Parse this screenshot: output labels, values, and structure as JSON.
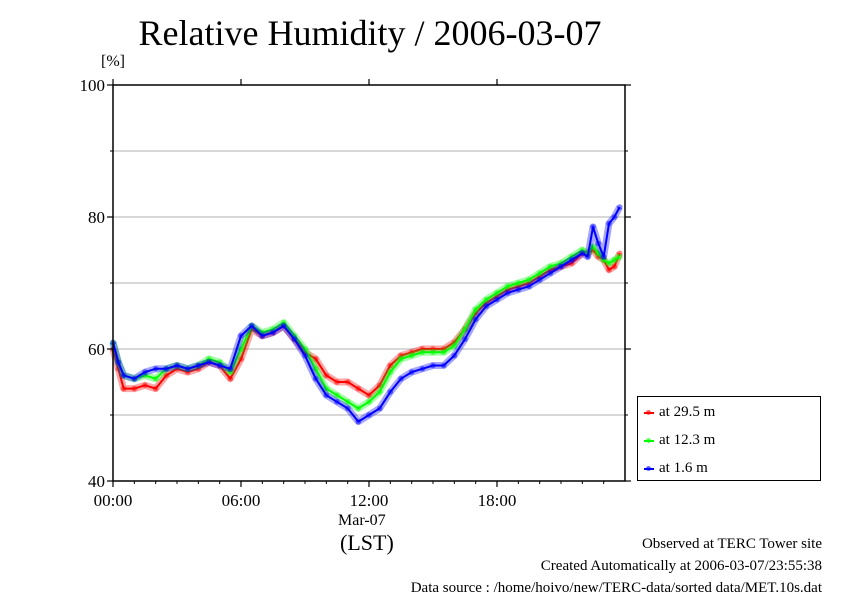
{
  "chart_data": {
    "type": "line",
    "title": "Relative Humidity / 2006-03-07",
    "ylabel": "[%]",
    "xlabel": "(LST)",
    "date_label": "Mar-07",
    "ylim": [
      40,
      100
    ],
    "xlim_hours": [
      0,
      24
    ],
    "y_ticks": [
      "40",
      "60",
      "80",
      "100"
    ],
    "x_ticks": [
      "00:00",
      "06:00",
      "12:00",
      "18:00"
    ],
    "grid": true,
    "legend_position": "bottom-right outside",
    "series": [
      {
        "name": "at 29.5 m",
        "color": "#ff0000",
        "x": [
          0.0,
          0.25,
          0.5,
          1.0,
          1.5,
          2.0,
          2.5,
          3.0,
          3.5,
          4.0,
          4.5,
          5.0,
          5.5,
          6.0,
          6.5,
          7.0,
          7.5,
          8.0,
          8.5,
          9.0,
          9.5,
          10.0,
          10.5,
          11.0,
          11.5,
          12.0,
          12.5,
          13.0,
          13.5,
          14.0,
          14.5,
          15.0,
          15.5,
          16.0,
          16.5,
          17.0,
          17.5,
          18.0,
          18.5,
          19.0,
          19.5,
          20.0,
          20.5,
          21.0,
          21.5,
          22.0,
          22.25,
          22.5,
          22.75,
          23.0,
          23.25,
          23.5,
          23.75
        ],
        "y": [
          60.0,
          57.0,
          54.0,
          54.0,
          54.5,
          54.0,
          56.0,
          57.0,
          56.5,
          57.0,
          58.0,
          57.5,
          55.5,
          58.5,
          63.0,
          62.0,
          62.5,
          63.5,
          61.5,
          59.5,
          58.5,
          56.0,
          55.0,
          55.0,
          54.0,
          53.0,
          54.5,
          57.5,
          59.0,
          59.5,
          60.0,
          60.0,
          60.0,
          61.0,
          63.0,
          65.5,
          67.0,
          68.0,
          69.0,
          69.5,
          70.0,
          71.0,
          72.0,
          72.5,
          73.0,
          74.5,
          74.5,
          75.0,
          74.0,
          73.5,
          72.0,
          72.5,
          74.5
        ]
      },
      {
        "name": "at 12.3 m",
        "color": "#00ff00",
        "x": [
          0.0,
          0.25,
          0.5,
          1.0,
          1.5,
          2.0,
          2.5,
          3.0,
          3.5,
          4.0,
          4.5,
          5.0,
          5.5,
          6.0,
          6.5,
          7.0,
          7.5,
          8.0,
          8.5,
          9.0,
          9.5,
          10.0,
          10.5,
          11.0,
          11.5,
          12.0,
          12.5,
          13.0,
          13.5,
          14.0,
          14.5,
          15.0,
          15.5,
          16.0,
          16.5,
          17.0,
          17.5,
          18.0,
          18.5,
          19.0,
          19.5,
          20.0,
          20.5,
          21.0,
          21.5,
          22.0,
          22.25,
          22.5,
          22.75,
          23.0,
          23.25,
          23.5,
          23.75
        ],
        "y": [
          61.0,
          58.0,
          56.0,
          55.5,
          56.0,
          55.5,
          57.0,
          57.5,
          57.0,
          57.5,
          58.5,
          58.0,
          56.5,
          60.0,
          63.5,
          62.5,
          63.0,
          64.0,
          62.0,
          60.0,
          57.0,
          54.0,
          53.0,
          52.0,
          51.0,
          52.0,
          53.5,
          56.5,
          58.5,
          59.0,
          59.5,
          59.5,
          59.5,
          60.5,
          63.0,
          66.0,
          67.5,
          68.5,
          69.5,
          70.0,
          70.5,
          71.5,
          72.5,
          73.0,
          74.0,
          75.0,
          74.5,
          75.5,
          74.5,
          73.5,
          73.0,
          73.5,
          74.0
        ]
      },
      {
        "name": "at 1.6 m",
        "color": "#0000ff",
        "x": [
          0.0,
          0.25,
          0.5,
          1.0,
          1.5,
          2.0,
          2.5,
          3.0,
          3.5,
          4.0,
          4.5,
          5.0,
          5.5,
          6.0,
          6.5,
          7.0,
          7.5,
          8.0,
          8.5,
          9.0,
          9.5,
          10.0,
          10.5,
          11.0,
          11.5,
          12.0,
          12.5,
          13.0,
          13.5,
          14.0,
          14.5,
          15.0,
          15.5,
          16.0,
          16.5,
          17.0,
          17.5,
          18.0,
          18.5,
          19.0,
          19.5,
          20.0,
          20.5,
          21.0,
          21.5,
          22.0,
          22.25,
          22.5,
          22.75,
          23.0,
          23.25,
          23.5,
          23.75
        ],
        "y": [
          61.0,
          58.0,
          56.0,
          55.5,
          56.5,
          57.0,
          57.0,
          57.5,
          57.0,
          57.5,
          58.0,
          57.5,
          57.0,
          62.0,
          63.5,
          62.0,
          62.5,
          63.5,
          61.5,
          59.0,
          55.5,
          53.0,
          52.0,
          51.0,
          49.0,
          50.0,
          51.0,
          53.5,
          55.5,
          56.5,
          57.0,
          57.5,
          57.5,
          59.0,
          61.5,
          64.5,
          66.5,
          67.5,
          68.5,
          69.0,
          69.5,
          70.5,
          71.5,
          72.5,
          73.5,
          74.5,
          74.0,
          78.5,
          76.0,
          74.0,
          79.0,
          80.0,
          81.5
        ]
      }
    ]
  },
  "footer": {
    "line1": "Observed at TERC Tower site",
    "line2": "Created Automatically at 2006-03-07/23:55:38",
    "line3": "Data source : /home/hoivo/new/TERC-data/sorted  data/MET.10s.dat"
  }
}
